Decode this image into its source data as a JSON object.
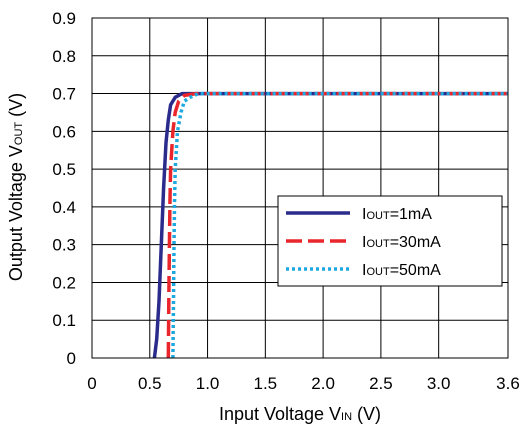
{
  "chart_data": {
    "type": "line",
    "xlabel": {
      "main": "Input Voltage V",
      "sub": "IN",
      "unit": " (V)"
    },
    "ylabel": {
      "main": "Output Voltage V",
      "sub": "OUT",
      "unit": " (V)"
    },
    "xlim": [
      0,
      3.6
    ],
    "ylim": [
      0,
      0.9
    ],
    "x_ticks": [
      "0",
      "0.5",
      "1.0",
      "1.5",
      "2.0",
      "2.5",
      "3.0",
      "3.6"
    ],
    "x_tick_values": [
      0,
      0.5,
      1.0,
      1.5,
      2.0,
      2.5,
      3.0,
      3.6
    ],
    "y_ticks": [
      "0",
      "0.1",
      "0.2",
      "0.3",
      "0.4",
      "0.5",
      "0.6",
      "0.7",
      "0.8",
      "0.9"
    ],
    "y_tick_values": [
      0,
      0.1,
      0.2,
      0.3,
      0.4,
      0.5,
      0.6,
      0.7,
      0.8,
      0.9
    ],
    "grid": true,
    "legend_position": "right-middle",
    "series": [
      {
        "name": "IOUT=1mA",
        "name_main": "I",
        "name_sub": "OUT",
        "name_rest": "=1mA",
        "color": "#2b2b8c",
        "dash": "solid",
        "x": [
          0.54,
          0.56,
          0.58,
          0.6,
          0.62,
          0.64,
          0.66,
          0.68,
          0.72,
          0.78,
          0.85,
          1.0,
          3.6
        ],
        "y": [
          0.0,
          0.05,
          0.15,
          0.3,
          0.45,
          0.57,
          0.63,
          0.67,
          0.69,
          0.7,
          0.7,
          0.7,
          0.7
        ]
      },
      {
        "name": "IOUT=30mA",
        "name_main": "I",
        "name_sub": "OUT",
        "name_rest": "=30mA",
        "color": "#e8262b",
        "dash": "dashed",
        "x": [
          0.66,
          0.665,
          0.67,
          0.675,
          0.68,
          0.7,
          0.72,
          0.75,
          0.8,
          0.9,
          1.0,
          3.6
        ],
        "y": [
          0.0,
          0.15,
          0.3,
          0.42,
          0.5,
          0.6,
          0.65,
          0.68,
          0.695,
          0.7,
          0.7,
          0.7
        ]
      },
      {
        "name": "IOUT=50mA",
        "name_main": "I",
        "name_sub": "OUT",
        "name_rest": "=50mA",
        "color": "#1ea8e0",
        "dash": "dotted",
        "x": [
          0.7,
          0.705,
          0.71,
          0.715,
          0.72,
          0.74,
          0.77,
          0.8,
          0.85,
          0.92,
          1.0,
          3.6
        ],
        "y": [
          0.0,
          0.15,
          0.3,
          0.42,
          0.5,
          0.6,
          0.65,
          0.68,
          0.69,
          0.7,
          0.7,
          0.7
        ]
      }
    ]
  }
}
